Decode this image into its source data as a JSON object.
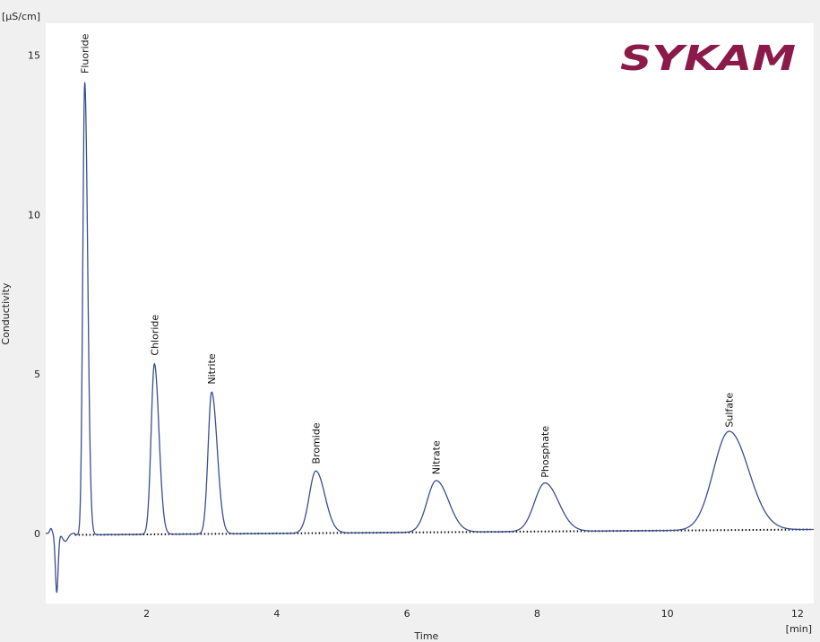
{
  "colors": {
    "trace": "#3a4f8f",
    "baseline": "#111111",
    "logo": "#8b1a4a",
    "plot_background": "#ffffff",
    "frame_background": "#f0f0f0"
  },
  "logo": {
    "text": "SYKAM"
  },
  "chart_data": {
    "type": "line",
    "xlabel": "Time",
    "ylabel": "Conductivity",
    "x_unit": "[min]",
    "y_unit": "[µS/cm]",
    "xlim": [
      0.45,
      12.25
    ],
    "ylim": [
      -2.2,
      16.0
    ],
    "x_ticks": [
      2,
      4,
      6,
      8,
      10,
      12
    ],
    "y_ticks": [
      0,
      5,
      10,
      15
    ],
    "grid": false,
    "series": [
      {
        "style": "solid",
        "dip": {
          "t": 0.62,
          "h": -1.85,
          "w": 0.03
        },
        "peaks": [
          {
            "name": "Fluoride",
            "t": 1.05,
            "h": 14.2,
            "wl": 0.03,
            "wr": 0.045
          },
          {
            "name": "Chloride",
            "t": 2.12,
            "h": 5.35,
            "wl": 0.05,
            "wr": 0.07
          },
          {
            "name": "Nitrite",
            "t": 3.0,
            "h": 4.45,
            "wl": 0.055,
            "wr": 0.085
          },
          {
            "name": "Bromide",
            "t": 4.6,
            "h": 1.95,
            "wl": 0.1,
            "wr": 0.14
          },
          {
            "name": "Nitrate",
            "t": 6.45,
            "h": 1.62,
            "wl": 0.14,
            "wr": 0.19
          },
          {
            "name": "Phosphate",
            "t": 8.12,
            "h": 1.52,
            "wl": 0.16,
            "wr": 0.21
          },
          {
            "name": "Sulfate",
            "t": 10.95,
            "h": 3.1,
            "wl": 0.24,
            "wr": 0.3
          }
        ]
      },
      {
        "style": "dotted",
        "baseline_start": [
          0.9,
          -0.05
        ],
        "baseline_end": [
          12.2,
          0.12
        ]
      }
    ]
  }
}
